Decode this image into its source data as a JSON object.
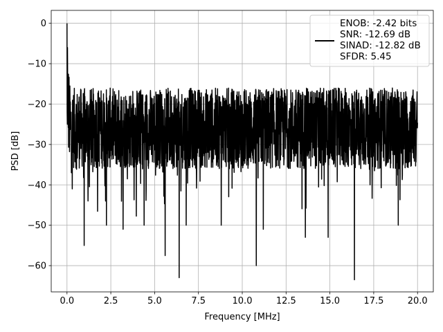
{
  "chart_data": {
    "type": "line",
    "title": "",
    "xlabel": "Frequency [MHz]",
    "ylabel": "PSD [dB]",
    "xlim": [
      -0.9,
      20.9
    ],
    "ylim": [
      -66.5,
      3.2
    ],
    "xticks": [
      0.0,
      2.5,
      5.0,
      7.5,
      10.0,
      12.5,
      15.0,
      17.5,
      20.0
    ],
    "xtick_labels": [
      "0.0",
      "2.5",
      "5.0",
      "7.5",
      "10.0",
      "12.5",
      "15.0",
      "17.5",
      "20.0"
    ],
    "yticks": [
      0,
      -10,
      -20,
      -30,
      -40,
      -50,
      -60
    ],
    "ytick_labels": [
      "0",
      "−10",
      "−20",
      "−30",
      "−40",
      "−50",
      "−60"
    ],
    "grid": true,
    "legend_position": "top-right",
    "series": [
      {
        "name": "ENOB: -2.42 bits\nSNR: -12.69 dB\nSINAD: -12.82 dB\nSFDR: 5.45",
        "color": "#000000",
        "x_range": [
          0,
          20
        ],
        "peak": {
          "x": 0.0,
          "y": 0
        },
        "noise_floor_band": [
          -36,
          -16
        ],
        "dips": [
          {
            "x": 0.02,
            "y": -25
          },
          {
            "x": 0.25,
            "y": -37
          },
          {
            "x": 0.3,
            "y": -41
          },
          {
            "x": 0.98,
            "y": -55
          },
          {
            "x": 1.2,
            "y": -44
          },
          {
            "x": 2.2,
            "y": -44
          },
          {
            "x": 2.25,
            "y": -50
          },
          {
            "x": 3.2,
            "y": -51
          },
          {
            "x": 4.4,
            "y": -50
          },
          {
            "x": 5.6,
            "y": -57.5
          },
          {
            "x": 6.4,
            "y": -63
          },
          {
            "x": 6.8,
            "y": -50
          },
          {
            "x": 8.8,
            "y": -50
          },
          {
            "x": 10.8,
            "y": -60
          },
          {
            "x": 11.2,
            "y": -51
          },
          {
            "x": 13.6,
            "y": -53
          },
          {
            "x": 14.9,
            "y": -53
          },
          {
            "x": 16.4,
            "y": -63.5
          },
          {
            "x": 18.9,
            "y": -50
          }
        ]
      }
    ]
  }
}
